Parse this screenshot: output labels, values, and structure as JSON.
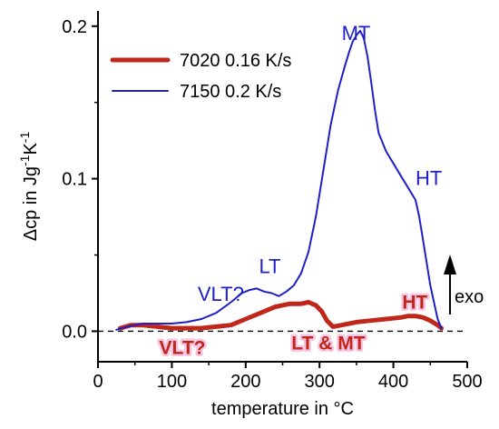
{
  "chart_data": {
    "type": "line",
    "xlabel": "temperature in °C",
    "ylabel_parts": [
      "Δcp in Jg",
      "-1",
      "K",
      "-1"
    ],
    "xlim": [
      0,
      500
    ],
    "ylim": [
      -0.02,
      0.21
    ],
    "x_ticks": [
      0,
      100,
      200,
      300,
      400,
      500
    ],
    "x_tick_labels": [
      "0",
      "100",
      "200",
      "300",
      "400",
      "500"
    ],
    "y_ticks": [
      0.0,
      0.1,
      0.2
    ],
    "y_tick_labels": [
      "0.0",
      "0.1",
      "0.2"
    ],
    "grid": false,
    "legend_position": "top-left",
    "exo_label": "exo",
    "series": [
      {
        "name": "7020 0.16 K/s",
        "color": "#c0271b",
        "x": [
          30,
          45,
          60,
          80,
          100,
          120,
          140,
          160,
          180,
          200,
          220,
          240,
          260,
          275,
          285,
          295,
          303,
          310,
          318,
          330,
          350,
          370,
          390,
          410,
          420,
          430,
          440,
          450,
          460,
          465
        ],
        "y": [
          0.002,
          0.004,
          0.004,
          0.003,
          0.002,
          0.002,
          0.002,
          0.003,
          0.004,
          0.008,
          0.012,
          0.016,
          0.018,
          0.018,
          0.019,
          0.017,
          0.013,
          0.007,
          0.003,
          0.004,
          0.006,
          0.007,
          0.008,
          0.009,
          0.01,
          0.01,
          0.009,
          0.007,
          0.004,
          0.002
        ]
      },
      {
        "name": "7150 0.2 K/s",
        "color": "#1f1fc8",
        "x": [
          25,
          40,
          60,
          80,
          100,
          120,
          140,
          160,
          180,
          195,
          205,
          215,
          225,
          235,
          245,
          255,
          265,
          275,
          285,
          295,
          305,
          315,
          325,
          335,
          340,
          345,
          350,
          355,
          360,
          365,
          370,
          375,
          380,
          390,
          400,
          410,
          420,
          430,
          435,
          440,
          450,
          460,
          465
        ],
        "y": [
          0.001,
          0.003,
          0.005,
          0.005,
          0.005,
          0.006,
          0.008,
          0.012,
          0.019,
          0.025,
          0.027,
          0.028,
          0.026,
          0.025,
          0.023,
          0.026,
          0.03,
          0.038,
          0.052,
          0.075,
          0.105,
          0.135,
          0.158,
          0.175,
          0.183,
          0.19,
          0.194,
          0.197,
          0.192,
          0.18,
          0.163,
          0.145,
          0.13,
          0.118,
          0.11,
          0.102,
          0.094,
          0.086,
          0.075,
          0.06,
          0.03,
          0.008,
          0.002
        ]
      }
    ],
    "annotations_blue": [
      {
        "text": "MT",
        "x": 330,
        "y": 0.191
      },
      {
        "text": "HT",
        "x": 430,
        "y": 0.096
      },
      {
        "text": "LT",
        "x": 218,
        "y": 0.038
      },
      {
        "text": "VLT?",
        "x": 135,
        "y": 0.02
      }
    ],
    "annotations_red": [
      {
        "text": "VLT?",
        "x": 83,
        "y": -0.015
      },
      {
        "text": "LT & MT",
        "x": 262,
        "y": -0.012
      },
      {
        "text": "HT",
        "x": 412,
        "y": 0.015
      }
    ]
  }
}
